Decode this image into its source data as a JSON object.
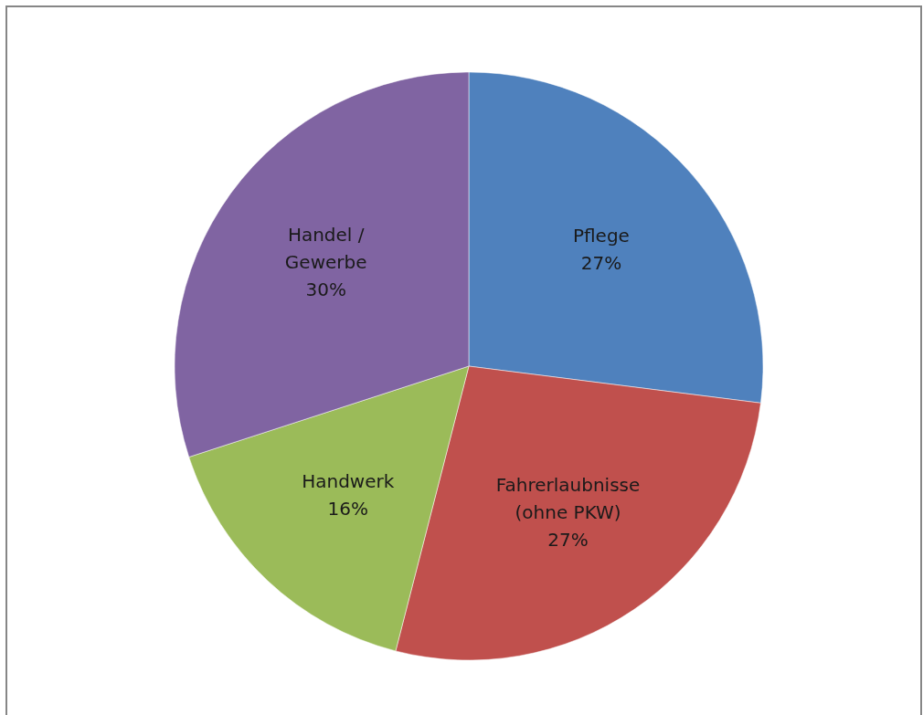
{
  "chart_data": {
    "type": "pie",
    "categories": [
      "Pflege",
      "Fahrerlaubnisse\n(ohne PKW)",
      "Handwerk",
      "Handel /\nGewerbe"
    ],
    "values": [
      27,
      27,
      16,
      30
    ],
    "colors": [
      "#4f81bd",
      "#c0504d",
      "#9bbb59",
      "#8064a2"
    ],
    "value_labels": [
      "27%",
      "27%",
      "16%",
      "30%"
    ]
  }
}
